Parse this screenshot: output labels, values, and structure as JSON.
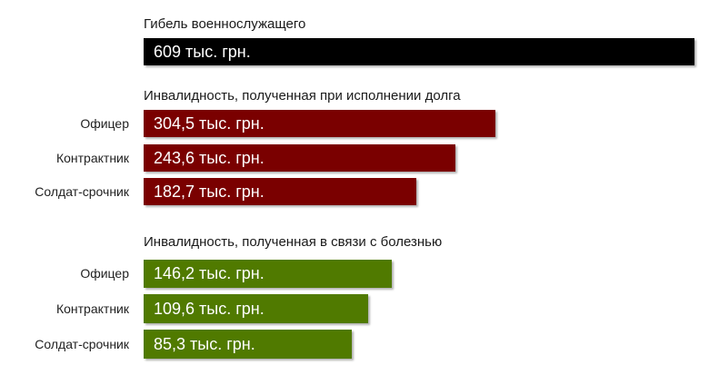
{
  "chart_data": {
    "type": "bar",
    "orientation": "horizontal",
    "grid": false,
    "groups": [
      {
        "title": "Гибель военнослужащего",
        "color": "#000000",
        "items": [
          {
            "value": 609,
            "label": "609 тыс. грн."
          }
        ]
      },
      {
        "title": "Инвалидность, полученная при исполнении долга",
        "color": "#7a0000",
        "items": [
          {
            "category": "Офицер",
            "value": 304.5,
            "label": "304,5 тыс. грн."
          },
          {
            "category": "Контрактник",
            "value": 243.6,
            "label": "243,6 тыс. грн."
          },
          {
            "category": "Солдат-срочник",
            "value": 182.7,
            "label": "182,7 тыс. грн."
          }
        ]
      },
      {
        "title": "Инвалидность, полученная в связи с болезнью",
        "color": "#507a00",
        "items": [
          {
            "category": "Офицер",
            "value": 146.2,
            "label": "146,2 тыс. грн."
          },
          {
            "category": "Контрактник",
            "value": 109.6,
            "label": "109,6 тыс. грн."
          },
          {
            "category": "Солдат-срочник",
            "value": 85.3,
            "label": "85,3 тыс. грн."
          }
        ]
      }
    ]
  }
}
